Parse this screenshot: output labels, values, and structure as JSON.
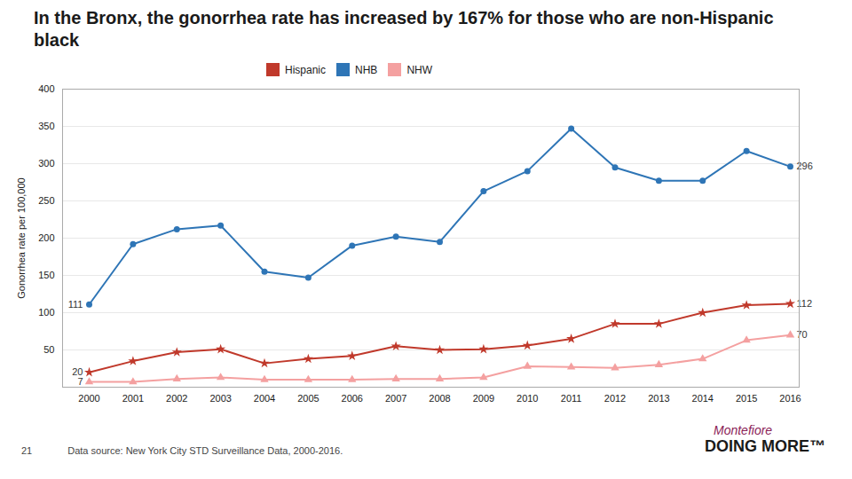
{
  "chart_data": {
    "type": "line",
    "title": "In the Bronx, the gonorrhea rate has increased by 167% for those who are non-Hispanic black",
    "ylabel": "Gonorrhea rate per 100,000",
    "x": [
      2000,
      2001,
      2002,
      2003,
      2004,
      2005,
      2006,
      2007,
      2008,
      2009,
      2010,
      2011,
      2012,
      2013,
      2014,
      2015,
      2016
    ],
    "series": [
      {
        "name": "Hispanic",
        "color": "#c0392b",
        "marker": "star",
        "values": [
          20,
          35,
          47,
          51,
          32,
          38,
          42,
          55,
          50,
          51,
          56,
          65,
          85,
          85,
          100,
          110,
          112
        ]
      },
      {
        "name": "NHB",
        "color": "#2e75b6",
        "marker": "circle",
        "values": [
          111,
          192,
          212,
          217,
          155,
          147,
          190,
          202,
          195,
          263,
          290,
          347,
          295,
          277,
          277,
          317,
          296
        ]
      },
      {
        "name": "NHW",
        "color": "#f4a0a0",
        "marker": "triangle",
        "values": [
          7,
          7,
          11,
          13,
          10,
          10,
          10,
          11,
          11,
          13,
          28,
          27,
          26,
          30,
          38,
          63,
          70
        ]
      }
    ],
    "xlim": [
      2000,
      2016
    ],
    "xticks": [
      2000,
      2001,
      2002,
      2003,
      2004,
      2005,
      2006,
      2007,
      2008,
      2009,
      2010,
      2011,
      2012,
      2013,
      2014,
      2015,
      2016
    ],
    "ylim": [
      0,
      400
    ],
    "yticks": [
      50,
      100,
      150,
      200,
      250,
      300,
      350,
      400
    ],
    "grid": true,
    "legend": "top",
    "annotations": [
      {
        "text": "111",
        "x": 2000,
        "y": 111
      },
      {
        "text": "20",
        "x": 2000,
        "y": 20
      },
      {
        "text": "7",
        "x": 2000,
        "y": 7
      },
      {
        "text": "296",
        "x": 2016,
        "y": 296
      },
      {
        "text": "112",
        "x": 2016,
        "y": 112
      },
      {
        "text": "70",
        "x": 2016,
        "y": 70
      }
    ],
    "caption": "Data source: New York City STD Surveillance Data, 2000-2016.",
    "page_number": "21",
    "logo": [
      "Montefiore",
      "DOING MORE™"
    ]
  }
}
